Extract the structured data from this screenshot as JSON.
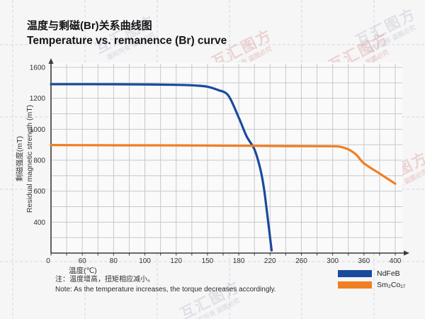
{
  "title": {
    "zh": "温度与剩磁(Br)关系曲线图",
    "en": "Temperature vs. remanence (Br) curve"
  },
  "note": {
    "zh": "注：温度增高，扭矩相应减小。",
    "en": "Note: As the temperature increases, the torque decreases accordingly."
  },
  "watermark": {
    "main": "互汇图方",
    "sub": "版权所有 盗图必究"
  },
  "colors": {
    "ndfeb": "#1a4a9c",
    "sm2co17": "#f07e22",
    "grid": "#c6c8cb",
    "axis": "#3a3a3a",
    "tick_text": "#333333",
    "background": "#f6f6f6",
    "plot_background": "#fafafa"
  },
  "legend": [
    {
      "label": "NdFeB",
      "color": "#1a4a9c"
    },
    {
      "label": "Sm₂Co₁₇",
      "color": "#f07e22"
    }
  ],
  "chart_data": {
    "type": "line",
    "title": "温度与剩磁(Br)关系曲线图 / Temperature vs. remanence (Br) curve",
    "xlabel": "温度(℃)",
    "ylabel_zh": "剩磁强度(mT)",
    "ylabel_en": "Residual magnetic strength (mT)",
    "x_ticks": [
      0,
      60,
      80,
      100,
      120,
      150,
      180,
      220,
      260,
      300,
      360,
      400
    ],
    "y_ticks": [
      1600,
      1200,
      1000,
      800,
      600,
      400
    ],
    "origin_label": "0",
    "ylim": [
      0,
      1600
    ],
    "grid": true,
    "legend_position": "bottom-right",
    "series": [
      {
        "name": "NdFeB",
        "color": "#1a4a9c",
        "points": [
          [
            0,
            1382
          ],
          [
            60,
            1382
          ],
          [
            80,
            1381
          ],
          [
            100,
            1379
          ],
          [
            120,
            1374
          ],
          [
            140,
            1364
          ],
          [
            150,
            1350
          ],
          [
            160,
            1308
          ],
          [
            170,
            1235
          ],
          [
            180,
            1075
          ],
          [
            190,
            955
          ],
          [
            200,
            870
          ],
          [
            207,
            755
          ],
          [
            212,
            625
          ],
          [
            216,
            465
          ],
          [
            219,
            285
          ],
          [
            221,
            115
          ],
          [
            222,
            35
          ]
        ]
      },
      {
        "name": "Sm2Co17",
        "color": "#f07e22",
        "points": [
          [
            0,
            898
          ],
          [
            60,
            897
          ],
          [
            100,
            896
          ],
          [
            150,
            895
          ],
          [
            200,
            893
          ],
          [
            250,
            891
          ],
          [
            300,
            890
          ],
          [
            315,
            886
          ],
          [
            330,
            870
          ],
          [
            345,
            836
          ],
          [
            360,
            780
          ],
          [
            380,
            714
          ],
          [
            400,
            648
          ]
        ]
      }
    ]
  }
}
